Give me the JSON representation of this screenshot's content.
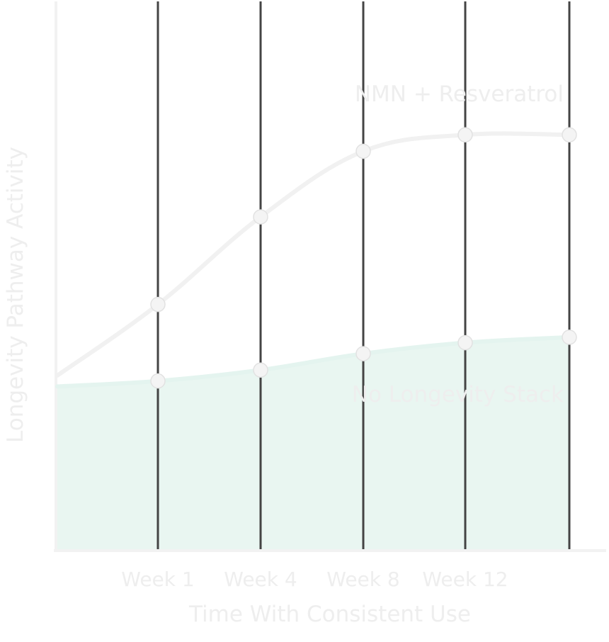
{
  "chart_data": {
    "type": "line",
    "title": "",
    "xlabel": "Time With Consistent Use",
    "ylabel": "Longevity Pathway Activity",
    "categories": [
      "Week 1",
      "Week 4",
      "Week 8",
      "Week 12",
      ""
    ],
    "ylim": [
      0,
      100
    ],
    "grid": true,
    "series": [
      {
        "name": "NMN + Resveratrol",
        "start": 32,
        "values": [
          45,
          61,
          73,
          76,
          76
        ],
        "color": "#f1f1f1"
      },
      {
        "name": "No Longevity Stack",
        "start": 30,
        "values": [
          31,
          33,
          36,
          38,
          39
        ],
        "color": "#e4f4ef",
        "fill": "#e9f6f1"
      }
    ],
    "colors": {
      "gridline": "#444444",
      "axis": "#f2f2f2",
      "marker": "#f4f4f4",
      "text": "#eeeeee"
    }
  }
}
